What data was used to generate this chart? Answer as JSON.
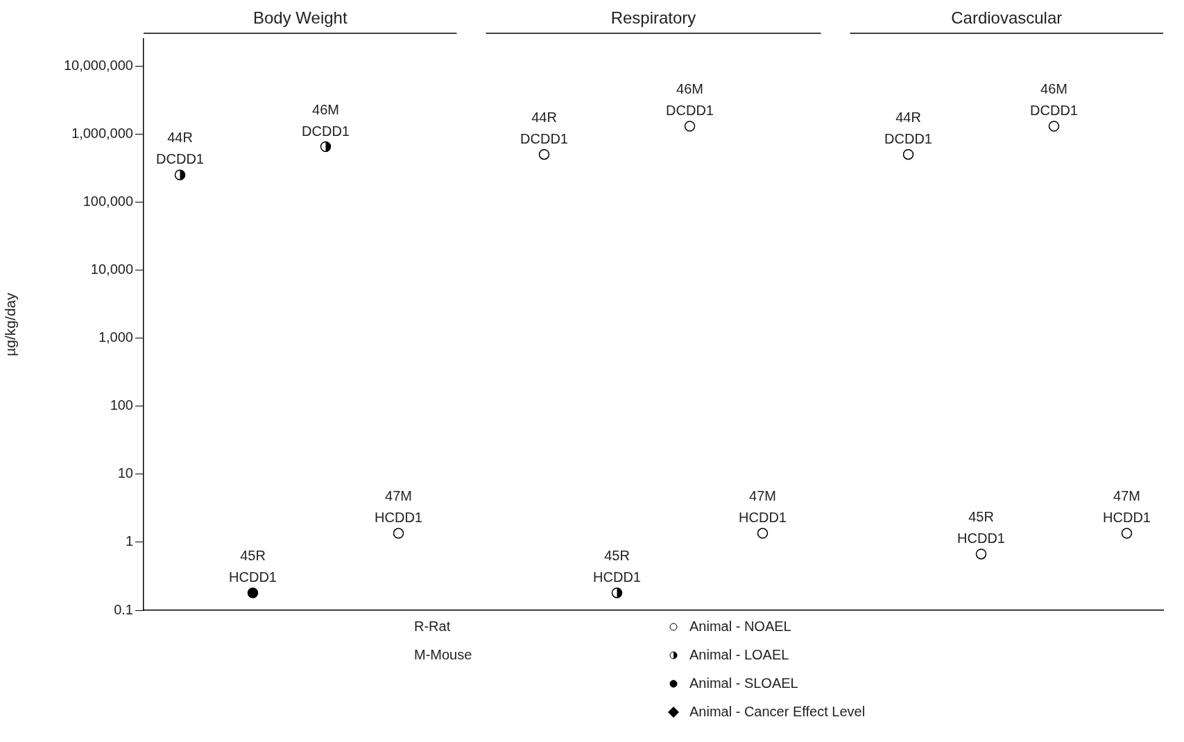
{
  "chart_data": {
    "type": "scatter",
    "ylabel": "µg/kg/day",
    "log": "y",
    "ylim": [
      0.1,
      25000000
    ],
    "yticks": [
      0.1,
      1,
      10,
      100,
      {
        "value": 1000,
        "label": "1,000"
      },
      {
        "value": 10000,
        "label": "10,000"
      },
      {
        "value": 100000,
        "label": "100,000"
      },
      {
        "value": 1000000,
        "label": "1,000,000"
      },
      {
        "value": 10000000,
        "label": "10,000,000"
      }
    ],
    "tick_labels": "y",
    "grid": false,
    "legend": "bottom",
    "categories": [
      null,
      null,
      null,
      null,
      null,
      null,
      null,
      null,
      null,
      null,
      null,
      null,
      null,
      null
    ],
    "annotations": [
      "Body Weight",
      "Respiratory",
      "Cardiovascular",
      "R-Rat",
      "M-Mouse"
    ],
    "series": [
      {
        "name": "Animal - NOAEL",
        "color": "#000000",
        "marker": "circle",
        "values": [
          null,
          null,
          null,
          1.35,
          null,
          500000,
          null,
          1300000,
          1.35,
          null,
          500000,
          0.67,
          1300000,
          1.35
        ],
        "value_labels": [
          null,
          null,
          null,
          "47M\nHCDD1",
          null,
          "44R\nDCDD1",
          null,
          "46M\nDCDD1",
          "47M\nHCDD1",
          null,
          "44R\nDCDD1",
          "45R\nHCDD1",
          "46M\nDCDD1",
          "47M\nHCDD1"
        ]
      },
      {
        "name": "Animal - LOAEL",
        "color": "#000000",
        "marker": "circle",
        "values": [
          250000,
          null,
          650000,
          null,
          null,
          null,
          0.18,
          null,
          null,
          null,
          null,
          null,
          null,
          null
        ],
        "value_labels": [
          "44R\nDCDD1",
          null,
          "46M\nDCDD1",
          null,
          null,
          null,
          "45R\nHCDD1",
          null,
          null,
          null,
          null,
          null,
          null,
          null
        ]
      },
      {
        "name": "Animal - SLOAEL",
        "color": "#000000",
        "marker": "circle",
        "values": [
          null,
          0.18,
          null,
          null,
          null,
          null,
          null,
          null,
          null,
          null,
          null,
          null,
          null,
          null
        ],
        "value_labels": [
          null,
          "45R\nHCDD1",
          null,
          null,
          null,
          null,
          null,
          null,
          null,
          null,
          null,
          null,
          null,
          null
        ]
      },
      {
        "name": "Animal - Cancer Effect Level",
        "color": "#000000",
        "marker": "diamond",
        "values": [
          null,
          null,
          null,
          null,
          null,
          null,
          null,
          null,
          null,
          null,
          null,
          null,
          null,
          null
        ]
      }
    ]
  }
}
